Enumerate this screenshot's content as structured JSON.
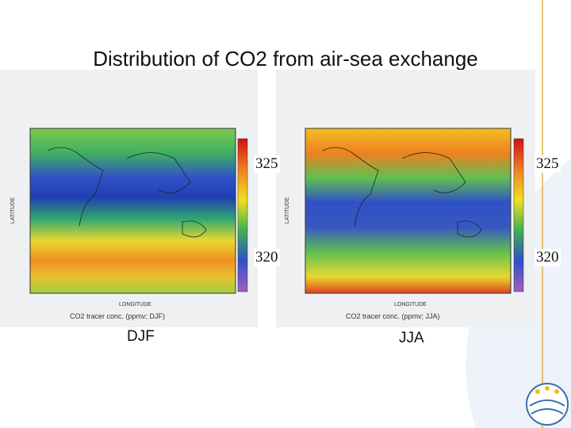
{
  "title": "Distribution of CO2 from air-sea exchange",
  "panels": [
    {
      "caption": "DJF",
      "map_caption": "CO2 tracer conc. (ppmv; DJF)",
      "x_axis_label": "LONGITUDE",
      "y_axis_label": "LATITUDE",
      "scale_high": "325",
      "scale_low": "320"
    },
    {
      "caption": "JJA",
      "map_caption": "CO2 tracer conc. (ppmv; JJA)",
      "x_axis_label": "LONGITUDE",
      "y_axis_label": "LATITUDE",
      "scale_high": "325",
      "scale_low": "320"
    }
  ]
}
